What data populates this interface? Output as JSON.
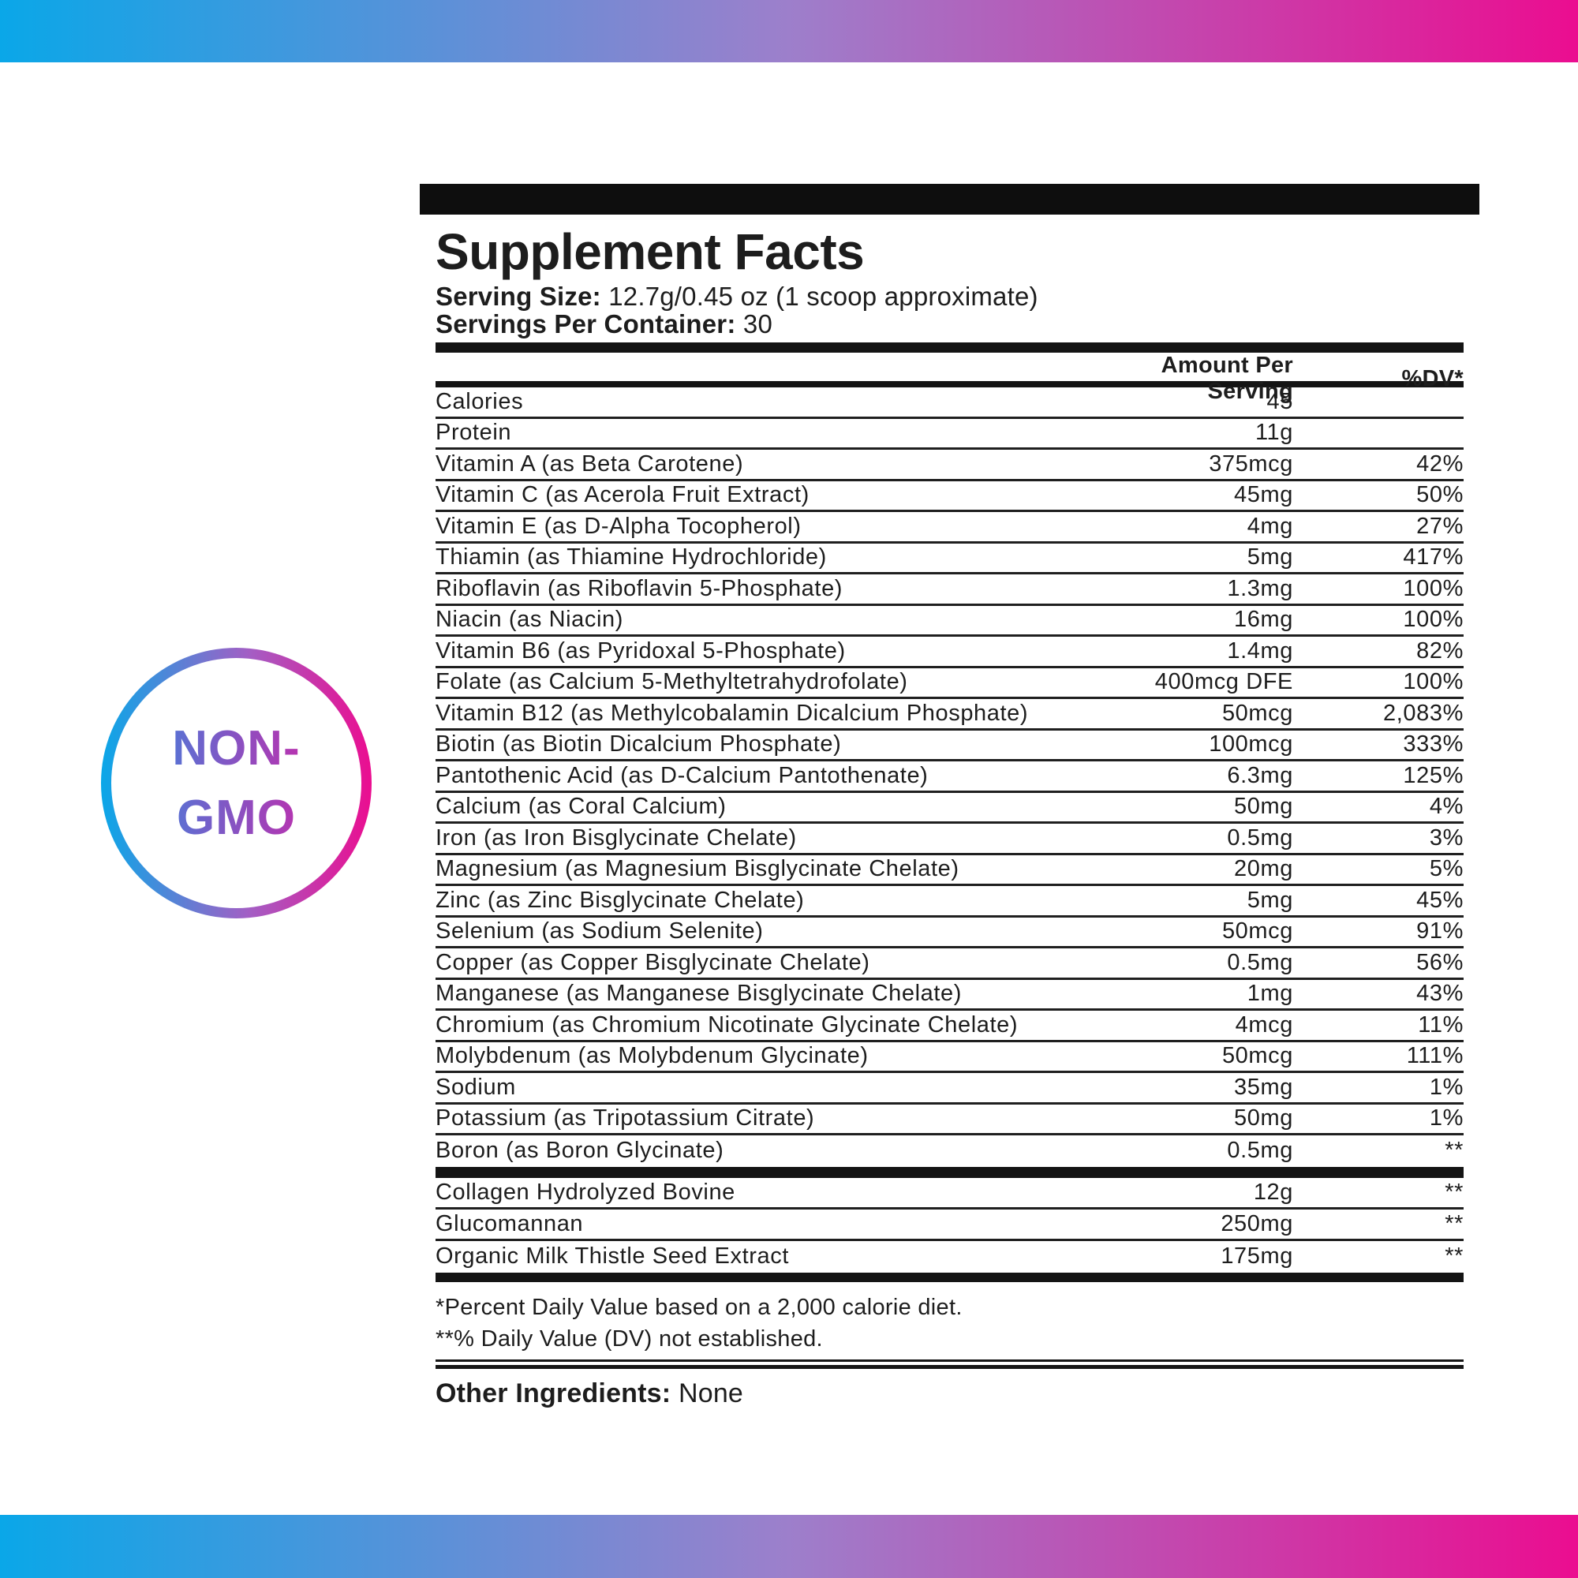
{
  "badge": {
    "line1": "NON-",
    "line2": "GMO"
  },
  "panel": {
    "title": "Supplement Facts",
    "serving_size_label": "Serving Size:",
    "serving_size_value": "12.7g/0.45 oz (1 scoop approximate)",
    "servings_label": "Servings Per Container:",
    "servings_value": "30",
    "col_amount": "Amount Per Serving",
    "col_dv": "%DV*",
    "rows": [
      {
        "label": "Calories",
        "amount": "45",
        "dv": ""
      },
      {
        "label": "Protein",
        "amount": "11g",
        "dv": ""
      },
      {
        "label": "Vitamin A (as Beta Carotene)",
        "amount": "375mcg",
        "dv": "42%"
      },
      {
        "label": "Vitamin C (as Acerola Fruit Extract)",
        "amount": "45mg",
        "dv": "50%"
      },
      {
        "label": "Vitamin E (as D-Alpha Tocopherol)",
        "amount": "4mg",
        "dv": "27%"
      },
      {
        "label": "Thiamin (as Thiamine Hydrochloride)",
        "amount": "5mg",
        "dv": "417%"
      },
      {
        "label": "Riboflavin (as Riboflavin 5-Phosphate)",
        "amount": "1.3mg",
        "dv": "100%"
      },
      {
        "label": "Niacin (as Niacin)",
        "amount": "16mg",
        "dv": "100%"
      },
      {
        "label": "Vitamin B6 (as Pyridoxal 5-Phosphate)",
        "amount": "1.4mg",
        "dv": "82%"
      },
      {
        "label": "Folate (as Calcium 5-Methyltetrahydrofolate)",
        "amount": "400mcg DFE",
        "dv": "100%"
      },
      {
        "label": "Vitamin B12 (as Methylcobalamin Dicalcium Phosphate)",
        "amount": "50mcg",
        "dv": "2,083%"
      },
      {
        "label": "Biotin (as Biotin Dicalcium Phosphate)",
        "amount": "100mcg",
        "dv": "333%"
      },
      {
        "label": "Pantothenic Acid (as D-Calcium Pantothenate)",
        "amount": "6.3mg",
        "dv": "125%"
      },
      {
        "label": "Calcium (as Coral Calcium)",
        "amount": "50mg",
        "dv": "4%"
      },
      {
        "label": "Iron (as Iron Bisglycinate Chelate)",
        "amount": "0.5mg",
        "dv": "3%"
      },
      {
        "label": "Magnesium (as Magnesium Bisglycinate Chelate)",
        "amount": "20mg",
        "dv": "5%"
      },
      {
        "label": "Zinc (as Zinc Bisglycinate Chelate)",
        "amount": "5mg",
        "dv": "45%"
      },
      {
        "label": "Selenium (as Sodium Selenite)",
        "amount": "50mcg",
        "dv": "91%"
      },
      {
        "label": "Copper (as Copper Bisglycinate Chelate)",
        "amount": "0.5mg",
        "dv": "56%"
      },
      {
        "label": "Manganese (as Manganese Bisglycinate Chelate)",
        "amount": "1mg",
        "dv": "43%"
      },
      {
        "label": "Chromium (as Chromium Nicotinate Glycinate Chelate)",
        "amount": "4mcg",
        "dv": "11%"
      },
      {
        "label": "Molybdenum (as Molybdenum Glycinate)",
        "amount": "50mcg",
        "dv": "111%"
      },
      {
        "label": "Sodium",
        "amount": "35mg",
        "dv": "1%"
      },
      {
        "label": "Potassium (as Tripotassium Citrate)",
        "amount": "50mg",
        "dv": "1%"
      },
      {
        "label": "Boron (as Boron Glycinate)",
        "amount": "0.5mg",
        "dv": "**"
      }
    ],
    "supplement_rows": [
      {
        "label": "Collagen Hydrolyzed Bovine",
        "amount": "12g",
        "dv": "**"
      },
      {
        "label": "Glucomannan",
        "amount": "250mg",
        "dv": "**"
      },
      {
        "label": "Organic Milk Thistle Seed Extract",
        "amount": "175mg",
        "dv": "**"
      }
    ],
    "footnote1": "*Percent Daily Value based on a 2,000 calorie diet.",
    "footnote2": "**% Daily Value (DV) not established.",
    "other_label": "Other Ingredients:",
    "other_value": "None"
  },
  "colors": {
    "gradient_left": "#0AA7E8",
    "gradient_mid": "#9D7FCB",
    "gradient_right": "#EB0D90",
    "badge_text_left": "#5A71D3",
    "badge_text_right": "#B733B0",
    "ink": "#1D1D1D"
  }
}
